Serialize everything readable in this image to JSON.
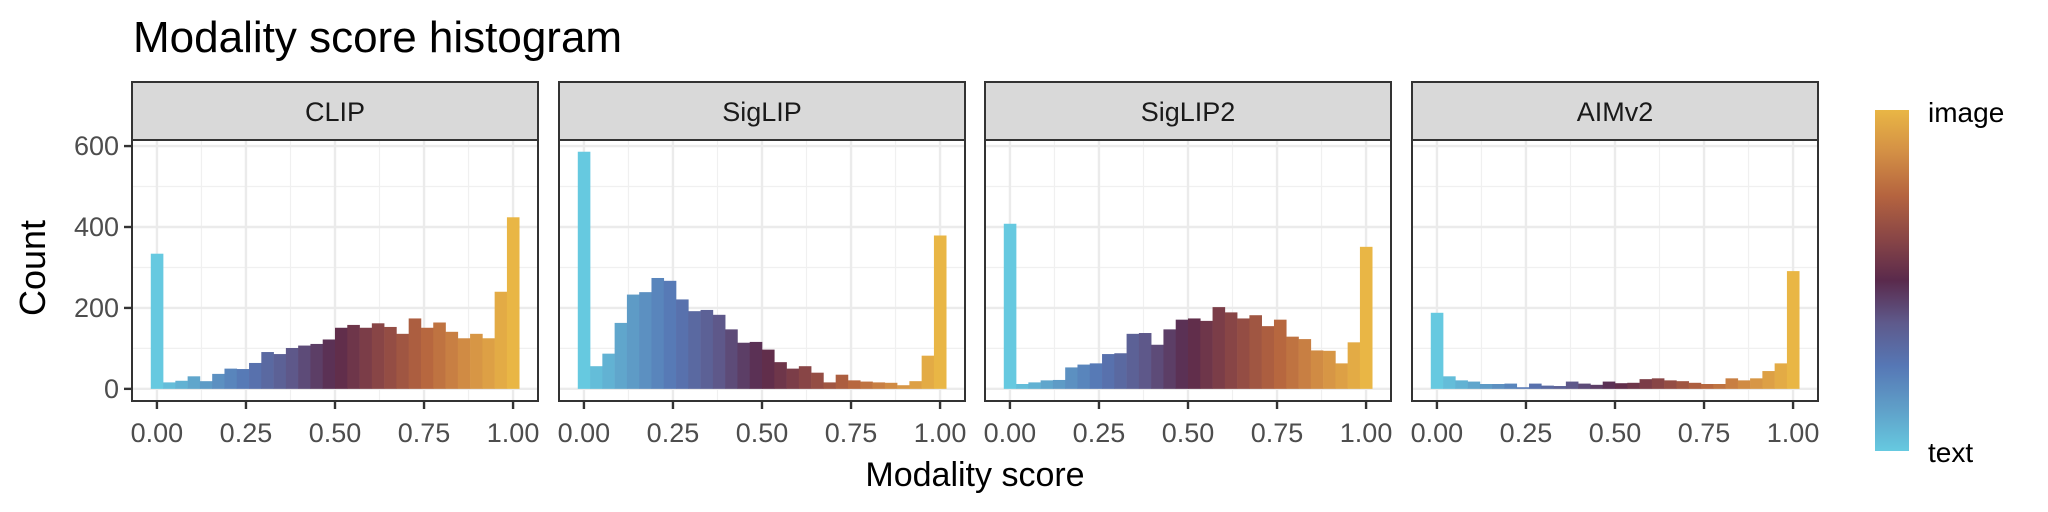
{
  "chart_data": {
    "type": "bar",
    "title": "Modality score histogram",
    "xlabel": "Modality score",
    "ylabel": "Count",
    "xlim": [
      -0.07,
      1.07
    ],
    "ylim": [
      -30,
      615
    ],
    "x_ticks": [
      "0.00",
      "0.25",
      "0.50",
      "0.75",
      "1.00"
    ],
    "x_tick_values": [
      0,
      0.25,
      0.5,
      0.75,
      1
    ],
    "y_ticks": [
      "0",
      "200",
      "400",
      "600"
    ],
    "y_tick_values": [
      0,
      200,
      400,
      600
    ],
    "grid": true,
    "bins": 30,
    "bin_range": [
      0,
      1
    ],
    "panels": [
      {
        "name": "CLIP",
        "values": [
          334,
          16,
          20,
          31,
          19,
          37,
          50,
          49,
          64,
          91,
          86,
          101,
          107,
          111,
          122,
          151,
          158,
          151,
          162,
          153,
          136,
          174,
          151,
          164,
          141,
          125,
          136,
          125,
          240,
          424
        ]
      },
      {
        "name": "SigLIP",
        "values": [
          586,
          56,
          87,
          163,
          233,
          239,
          274,
          267,
          221,
          192,
          195,
          183,
          147,
          114,
          116,
          97,
          66,
          50,
          56,
          40,
          16,
          35,
          21,
          18,
          16,
          15,
          9,
          19,
          82,
          379
        ]
      },
      {
        "name": "SigLIP2",
        "values": [
          408,
          12,
          16,
          21,
          22,
          53,
          60,
          63,
          86,
          88,
          136,
          138,
          109,
          147,
          171,
          174,
          168,
          202,
          189,
          174,
          182,
          155,
          171,
          129,
          123,
          95,
          94,
          63,
          115,
          351
        ]
      },
      {
        "name": "AIMv2",
        "values": [
          188,
          31,
          21,
          18,
          12,
          12,
          13,
          4,
          13,
          8,
          7,
          18,
          13,
          10,
          18,
          14,
          15,
          24,
          26,
          21,
          19,
          15,
          12,
          12,
          26,
          21,
          26,
          44,
          63,
          291
        ]
      }
    ],
    "legend": {
      "placement": "right",
      "type": "colorbar",
      "top_label": "image",
      "bottom_label": "text",
      "colors": [
        "#66c9e0",
        "#5f9fc8",
        "#5677b5",
        "#5e5a8c",
        "#5a2a4c",
        "#8a4646",
        "#b5643f",
        "#d38f45",
        "#e9b645"
      ]
    }
  }
}
